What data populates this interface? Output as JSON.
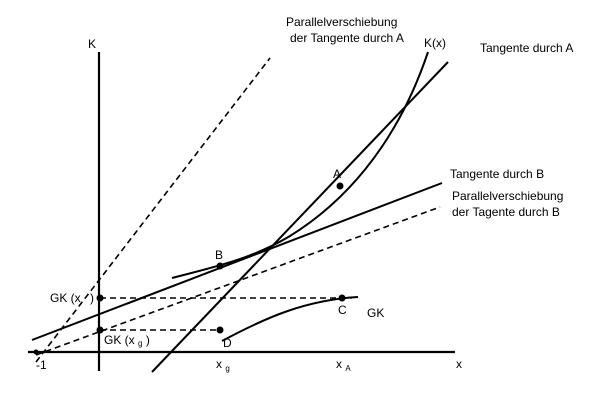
{
  "labels": {
    "k_axis": "K",
    "x_axis": "x",
    "minus_one": "-1",
    "kx_curve": "K(x)",
    "tangent_a": "Tangente durch A",
    "tangent_b": "Tangente durch B",
    "parallel_a_line1": "Parallelverschiebung",
    "parallel_a_line2": "der Tangente durch A",
    "parallel_b_line1": "Parallelverschiebung",
    "parallel_b_line2": "der Tagente durch B",
    "gk_curve": "GK",
    "point_a": "A",
    "point_b": "B",
    "point_c": "C",
    "point_d": "D",
    "gk_x_main": "GK (x",
    "gk_x_close": ")",
    "gk_xg_main": "GK (x",
    "gk_xg_sub": "g",
    "gk_xg_close": ")",
    "xg_main": "x",
    "xg_sub": "g",
    "xa_main": "x",
    "xa_sub": "A"
  }
}
